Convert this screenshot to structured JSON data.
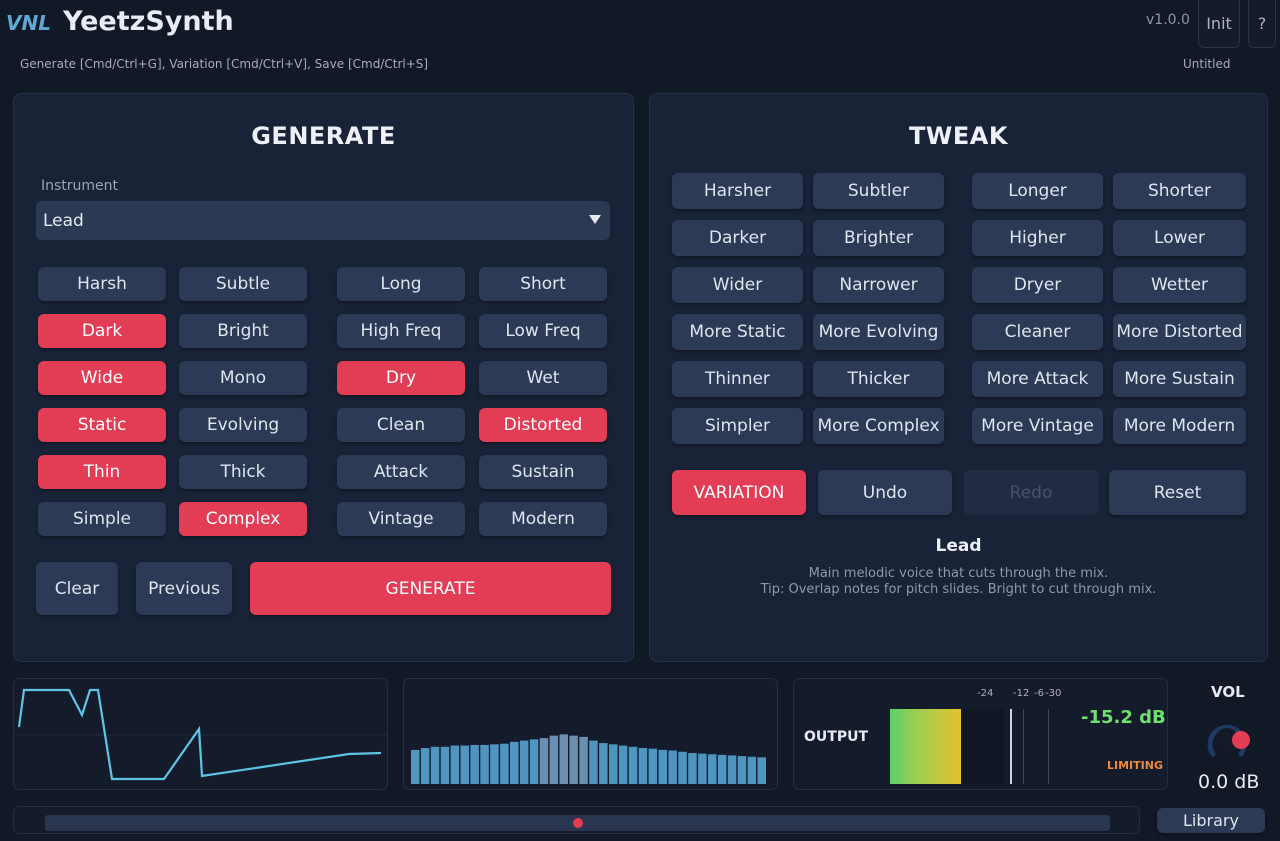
{
  "header": {
    "logo_text": "VNL",
    "title": "YeetzSynth",
    "version": "v1.0.0",
    "init_label": "Init",
    "help_label": "?",
    "shortcuts": "Generate [Cmd/Ctrl+G], Variation [Cmd/Ctrl+V], Save [Cmd/Ctrl+S]",
    "preset_name": "Untitled"
  },
  "generate": {
    "title": "GENERATE",
    "instrument_label": "Instrument",
    "instrument_value": "Lead",
    "traits": [
      {
        "label": "Harsh",
        "on": false
      },
      {
        "label": "Subtle",
        "on": false
      },
      {
        "label": "Long",
        "on": false
      },
      {
        "label": "Short",
        "on": false
      },
      {
        "label": "Dark",
        "on": true
      },
      {
        "label": "Bright",
        "on": false
      },
      {
        "label": "High Freq",
        "on": false
      },
      {
        "label": "Low Freq",
        "on": false
      },
      {
        "label": "Wide",
        "on": true
      },
      {
        "label": "Mono",
        "on": false
      },
      {
        "label": "Dry",
        "on": true
      },
      {
        "label": "Wet",
        "on": false
      },
      {
        "label": "Static",
        "on": true
      },
      {
        "label": "Evolving",
        "on": false
      },
      {
        "label": "Clean",
        "on": false
      },
      {
        "label": "Distorted",
        "on": true
      },
      {
        "label": "Thin",
        "on": true
      },
      {
        "label": "Thick",
        "on": false
      },
      {
        "label": "Attack",
        "on": false
      },
      {
        "label": "Sustain",
        "on": false
      },
      {
        "label": "Simple",
        "on": false
      },
      {
        "label": "Complex",
        "on": true
      },
      {
        "label": "Vintage",
        "on": false
      },
      {
        "label": "Modern",
        "on": false
      }
    ],
    "clear_label": "Clear",
    "previous_label": "Previous",
    "generate_label": "GENERATE"
  },
  "tweak": {
    "title": "TWEAK",
    "buttons": [
      "Harsher",
      "Subtler",
      "Longer",
      "Shorter",
      "Darker",
      "Brighter",
      "Higher",
      "Lower",
      "Wider",
      "Narrower",
      "Dryer",
      "Wetter",
      "More Static",
      "More Evolving",
      "Cleaner",
      "More Distorted",
      "Thinner",
      "Thicker",
      "More Attack",
      "More Sustain",
      "Simpler",
      "More Complex",
      "More Vintage",
      "More Modern"
    ],
    "variation_label": "VARIATION",
    "undo_label": "Undo",
    "redo_label": "Redo",
    "reset_label": "Reset",
    "info_title": "Lead",
    "info_desc": "Main melodic voice that cuts through the mix.",
    "info_tip": "Tip: Overlap notes for pitch slides. Bright to cut through mix."
  },
  "output": {
    "label": "OUTPUT",
    "scale": [
      "-24",
      "-12",
      "-6",
      "-3",
      "0"
    ],
    "level_db": "-15.2 dB",
    "limiting_label": "LIMITING",
    "meter_fill_fraction": 0.62
  },
  "volume": {
    "label": "VOL",
    "value": "0.0 dB"
  },
  "spectrum": {
    "bars": [
      0.55,
      0.58,
      0.6,
      0.6,
      0.62,
      0.62,
      0.63,
      0.63,
      0.64,
      0.65,
      0.68,
      0.7,
      0.72,
      0.74,
      0.78,
      0.8,
      0.78,
      0.76,
      0.7,
      0.66,
      0.64,
      0.62,
      0.6,
      0.58,
      0.57,
      0.55,
      0.54,
      0.52,
      0.5,
      0.49,
      0.48,
      0.47,
      0.46,
      0.45,
      0.44,
      0.43
    ]
  },
  "library_label": "Library",
  "colors": {
    "accent": "#e23d55",
    "background": "#111826",
    "panel": "#192337",
    "button": "#2c3a55",
    "envelope": "#5fc3e4",
    "spectrum": "#4e95bf"
  }
}
